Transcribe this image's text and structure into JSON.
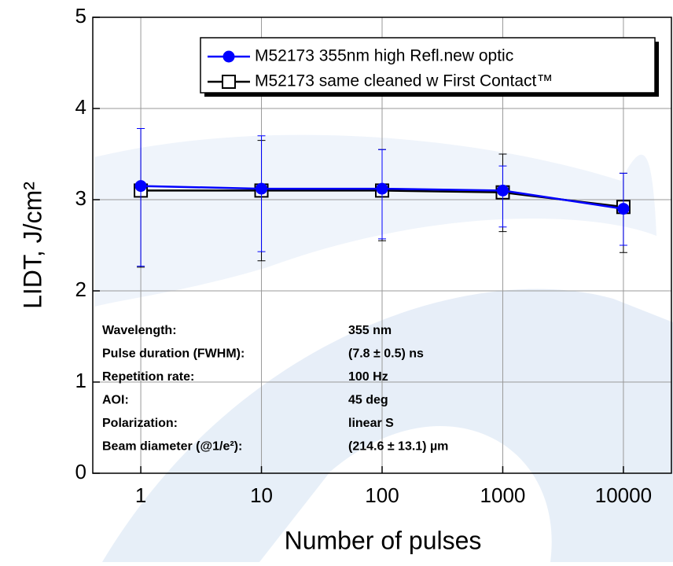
{
  "chart_data": {
    "type": "line",
    "x_label": "Number of pulses",
    "y_label": "LIDT, J/cm²",
    "x": [
      1,
      10,
      100,
      1000,
      10000
    ],
    "log_x": true,
    "xlim": [
      0.4,
      25000
    ],
    "xticks": [
      1,
      10,
      100,
      1000,
      10000
    ],
    "ylim": [
      0,
      5
    ],
    "yticks": [
      0,
      1,
      2,
      3,
      4,
      5
    ],
    "grid": true,
    "series": [
      {
        "name": "M52173 355nm high Refl.new optic",
        "color": "#0000ff",
        "marker": "filled-circle",
        "values": [
          3.15,
          3.12,
          3.12,
          3.1,
          2.9
        ],
        "error_minus": [
          0.88,
          0.69,
          0.55,
          0.4,
          0.4
        ],
        "error_plus": [
          0.63,
          0.58,
          0.43,
          0.27,
          0.39
        ]
      },
      {
        "name": "M52173 same cleaned w First Contact™",
        "color": "#000000",
        "marker": "open-square",
        "values": [
          3.1,
          3.1,
          3.1,
          3.08,
          2.92
        ],
        "error_minus": [
          0.84,
          0.77,
          0.55,
          0.43,
          0.5
        ],
        "error_plus": [
          0.68,
          0.55,
          0.45,
          0.42,
          0.37
        ]
      }
    ],
    "info_table": [
      [
        "Wavelength:",
        "355 nm"
      ],
      [
        "Pulse duration (FWHM):",
        "(7.8 ± 0.5) ns"
      ],
      [
        "Repetition rate:",
        "100 Hz"
      ],
      [
        "AOI:",
        "45 deg"
      ],
      [
        "Polarization:",
        "linear S"
      ],
      [
        "Beam diameter (@1/e²):",
        "(214.6 ± 13.1) µm"
      ]
    ]
  }
}
